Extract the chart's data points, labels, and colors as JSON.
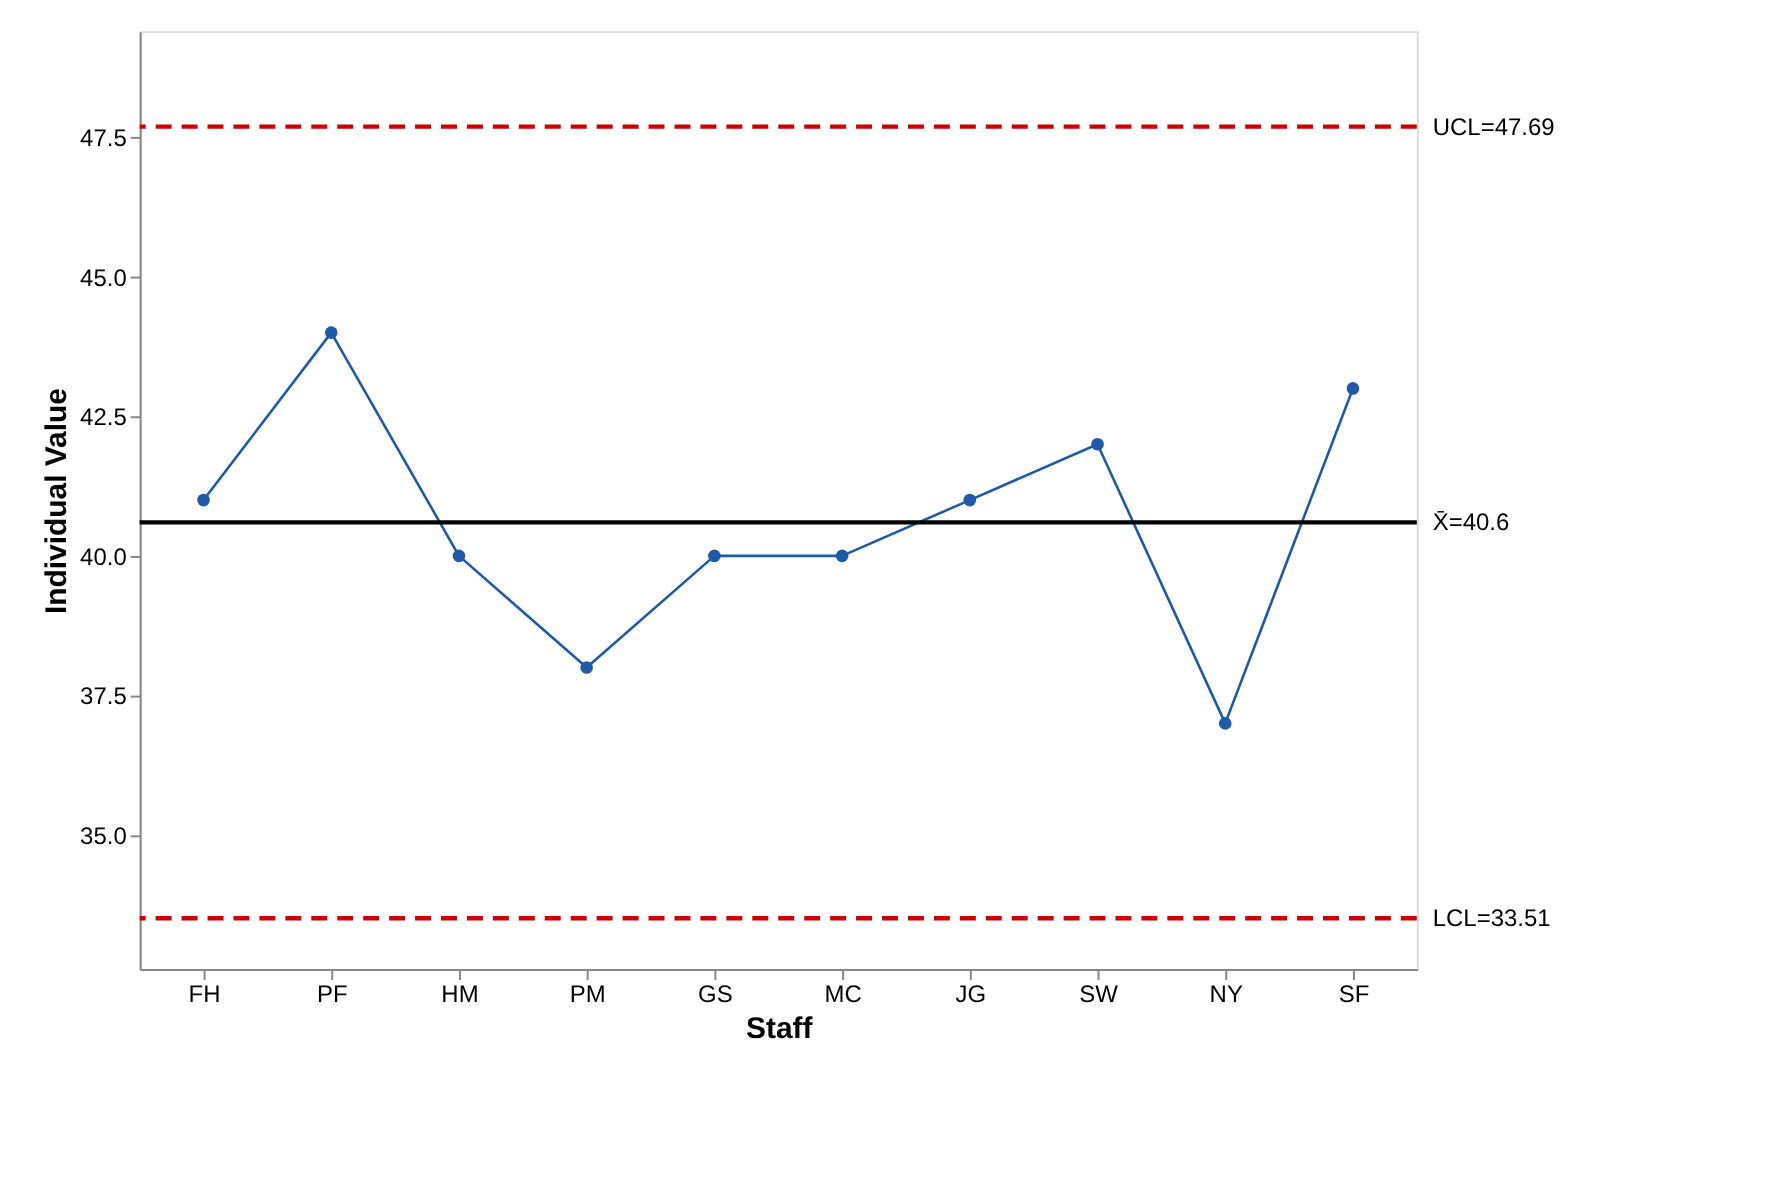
{
  "chart_data": {
    "type": "line",
    "xlabel": "Staff",
    "ylabel": "Individual Value",
    "categories": [
      "FH",
      "PF",
      "HM",
      "PM",
      "GS",
      "MC",
      "JG",
      "SW",
      "NY",
      "SF"
    ],
    "series": [
      {
        "color": "#1f5aa6",
        "values": [
          41,
          44,
          40,
          38,
          40,
          40,
          41,
          42,
          37,
          43
        ]
      }
    ],
    "marker": "circle",
    "line_style": "solid",
    "ylim": [
      32.6,
      49.4
    ],
    "yticks": [
      {
        "value": 35,
        "label": "35.0"
      },
      {
        "value": 37.5,
        "label": "37.5"
      },
      {
        "value": 40,
        "label": "40.0"
      },
      {
        "value": 42.5,
        "label": "42.5"
      },
      {
        "value": 45,
        "label": "45.0"
      },
      {
        "value": 47.5,
        "label": "47.5"
      }
    ],
    "ref_lines": [
      {
        "axis": "y",
        "value": 47.69,
        "label": "UCL=47.69",
        "color": "#cc0000",
        "line_style": "dashed"
      },
      {
        "axis": "y",
        "value": 40.6,
        "label": "X̄=40.6",
        "color": "#000000",
        "line_style": "solid"
      },
      {
        "axis": "y",
        "value": 33.51,
        "label": "LCL=33.51",
        "color": "#cc0000",
        "line_style": "dashed"
      }
    ],
    "grid": false
  }
}
